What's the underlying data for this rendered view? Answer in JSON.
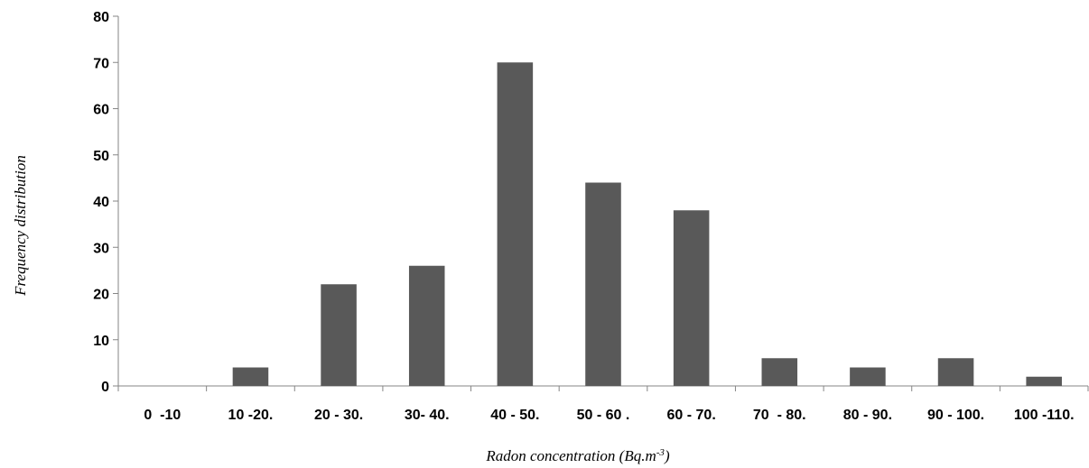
{
  "chart_data": {
    "type": "bar",
    "title": "",
    "xlabel_main": "Radon concentration (Bq.m",
    "xlabel_sup": "-3",
    "xlabel_end": ")",
    "ylabel": "Frequency distribution",
    "categories": [
      "0  -10",
      "10 -20.",
      "20 - 30.",
      "30- 40.",
      "40 - 50.",
      "50 - 60 .",
      "60 - 70.",
      "70  - 80.",
      "80 - 90.",
      "90 - 100.",
      "100 -110."
    ],
    "values": [
      0,
      4,
      22,
      26,
      70,
      44,
      38,
      6,
      4,
      6,
      2
    ],
    "ylim": [
      0,
      80
    ],
    "yticks": [
      0,
      10,
      20,
      30,
      40,
      50,
      60,
      70,
      80
    ],
    "grid": false,
    "legend": "none",
    "bar_color": "#595959",
    "axis_color": "#868686"
  }
}
